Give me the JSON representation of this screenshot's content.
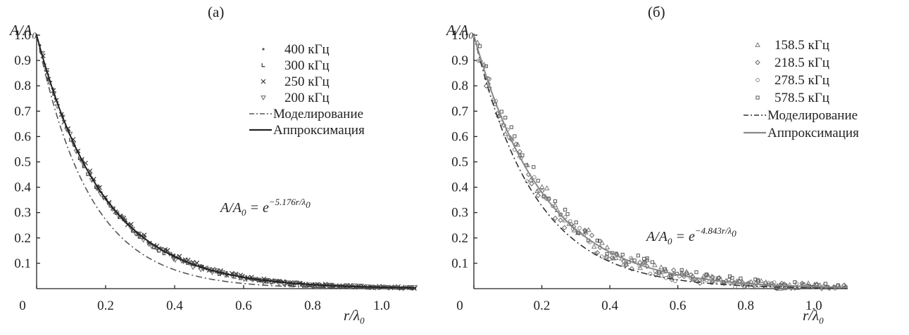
{
  "chart_data": [
    {
      "panel": "(a)",
      "type": "scatter",
      "ylabel": "A/A0",
      "xlabel": "r/λ0",
      "xlim": [
        0,
        1.1
      ],
      "ylim": [
        0,
        1.0
      ],
      "xticks": [
        "0",
        "0.2",
        "0.4",
        "0.6",
        "0.8",
        "1.0"
      ],
      "yticks": [
        "0.1",
        "0.2",
        "0.3",
        "0.4",
        "0.5",
        "0.6",
        "0.7",
        "0.8",
        "0.9",
        "1.0"
      ],
      "grid": false,
      "legend_position": "top-right",
      "series": [
        {
          "name": "400 кГц",
          "kind": "points",
          "marker": "dot",
          "decay": 5.15,
          "color": "#555555"
        },
        {
          "name": "300 кГц",
          "kind": "points",
          "marker": "corner",
          "decay": 5.2,
          "color": "#444444"
        },
        {
          "name": "250 кГц",
          "kind": "points",
          "marker": "cross",
          "decay": 5.1,
          "color": "#333333"
        },
        {
          "name": "200 кГц",
          "kind": "points",
          "marker": "triangle-down",
          "decay": 5.25,
          "color": "#666666"
        },
        {
          "name": "Моделирование",
          "kind": "line",
          "style": "dash-dot",
          "decay": 6.5,
          "color": "#555555"
        },
        {
          "name": "Аппроксимация",
          "kind": "line",
          "style": "solid",
          "decay": 5.176,
          "color": "#222222"
        }
      ],
      "annotation": {
        "lhs": "A/A",
        "lhs_sub": "0",
        "rhs": " = e",
        "exponent": "−5.176r/λ",
        "exponent_sub": "0"
      }
    },
    {
      "panel": "(б)",
      "type": "scatter",
      "ylabel": "A/A0",
      "xlabel": "r/λ0",
      "xlim": [
        0,
        1.1
      ],
      "ylim": [
        0,
        1.0
      ],
      "xticks": [
        "0",
        "0.2",
        "0.4",
        "0.6",
        "0.8",
        "1.0"
      ],
      "yticks": [
        "0.1",
        "0.2",
        "0.3",
        "0.4",
        "0.5",
        "0.6",
        "0.7",
        "0.8",
        "0.9",
        "1.0"
      ],
      "grid": false,
      "legend_position": "top-right",
      "series": [
        {
          "name": "158.5 кГц",
          "kind": "points",
          "marker": "triangle-up",
          "decay": 4.7,
          "color": "#777777"
        },
        {
          "name": "218.5 кГц",
          "kind": "points",
          "marker": "diamond",
          "decay": 4.9,
          "color": "#666666"
        },
        {
          "name": "278.5 кГц",
          "kind": "points",
          "marker": "circle",
          "decay": 5.0,
          "color": "#888888"
        },
        {
          "name": "578.5 кГц",
          "kind": "points",
          "marker": "square",
          "decay": 4.6,
          "color": "#555555"
        },
        {
          "name": "Моделирование",
          "kind": "line",
          "style": "dash-dot",
          "decay": 5.6,
          "color": "#333333"
        },
        {
          "name": "Аппроксимация",
          "kind": "line",
          "style": "solid",
          "decay": 4.843,
          "color": "#888888"
        }
      ],
      "annotation": {
        "lhs": "A/A",
        "lhs_sub": "0",
        "rhs": " = e",
        "exponent": "−4.843r/λ",
        "exponent_sub": "0"
      }
    }
  ]
}
